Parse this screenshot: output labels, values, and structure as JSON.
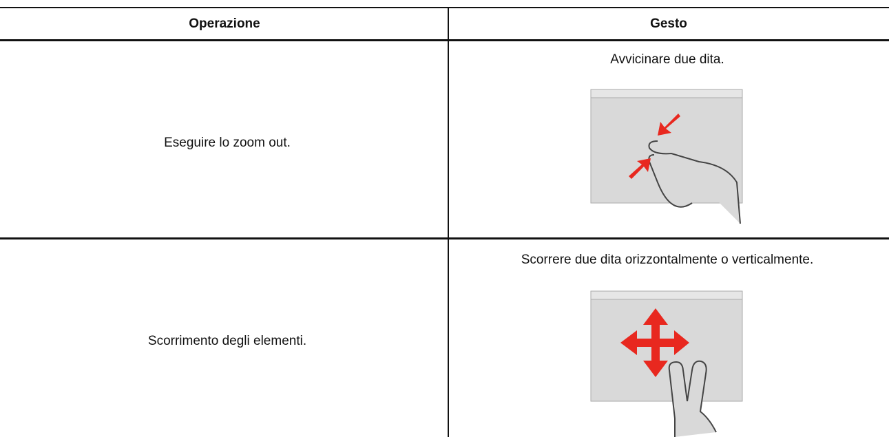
{
  "table": {
    "header": [
      "Operazione",
      "Gesto"
    ],
    "rows": [
      [
        "Eseguire lo zoom out.",
        "Avvicinare due dita."
      ],
      [
        "Scorrimento degli elementi.",
        "Scorrere due dita orizzontalmente o verticalmente."
      ]
    ]
  }
}
